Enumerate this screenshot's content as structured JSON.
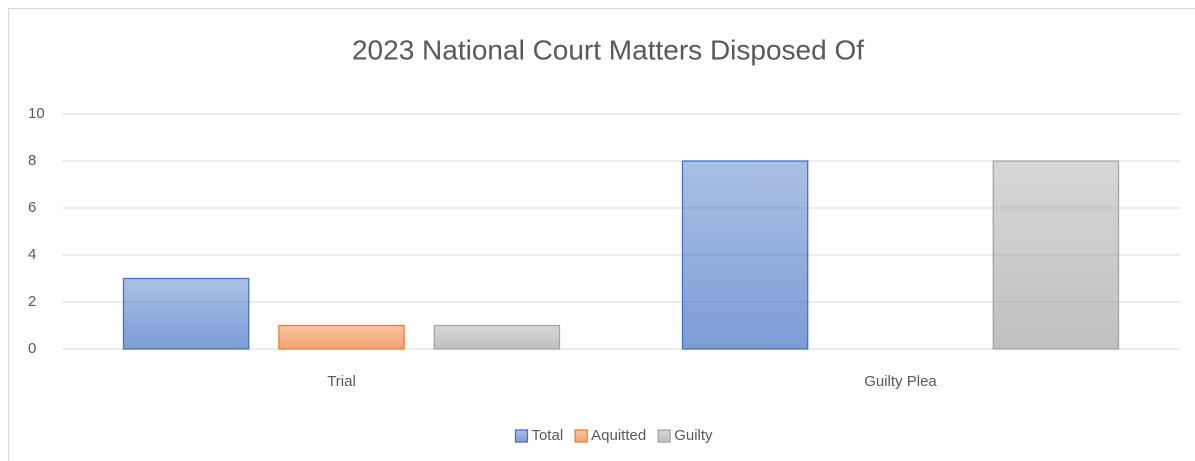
{
  "chart_data": {
    "type": "bar",
    "title": "2023 National Court Matters Disposed Of",
    "categories": [
      "Trial",
      "Guilty Plea"
    ],
    "series": [
      {
        "name": "Total",
        "color": "#4472c4",
        "values": [
          3,
          8
        ]
      },
      {
        "name": "Aquitted",
        "color": "#ed7d31",
        "values": [
          1,
          0
        ]
      },
      {
        "name": "Guilty",
        "color": "#a5a5a5",
        "values": [
          1,
          8
        ]
      }
    ],
    "ylim": [
      0,
      10
    ],
    "yticks": [
      0,
      2,
      4,
      6,
      8,
      10
    ],
    "grid": true,
    "legend": "bottom"
  }
}
